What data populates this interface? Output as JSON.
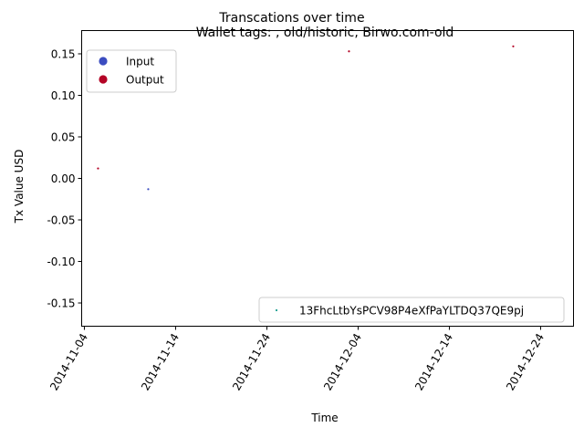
{
  "chart_data": {
    "type": "scatter",
    "suptitle": "Transcations over time",
    "title": "Wallet tags: , old/historic, Birwo.com-old",
    "xlabel": "Time",
    "ylabel": "Tx Value USD",
    "xlim": [
      "2014-11-04",
      "2014-12-26"
    ],
    "ylim": [
      -0.178,
      0.178
    ],
    "x_ticks": [
      "2014-11-04",
      "2014-11-14",
      "2014-11-24",
      "2014-12-04",
      "2014-12-14",
      "2014-12-24"
    ],
    "y_ticks": [
      0.15,
      0.1,
      0.05,
      0.0,
      -0.05,
      -0.1,
      -0.15
    ],
    "grid": false,
    "colors": {
      "input": "#3b4cc0",
      "output": "#b40426",
      "address": "#1a9e8f"
    },
    "legend_top_left": [
      {
        "label": "Input",
        "color": "#3b4cc0"
      },
      {
        "label": "Output",
        "color": "#b40426"
      }
    ],
    "legend_bottom_right": [
      {
        "label": "13FhcLtbYsPCV98P4eXfPaYLTDQ37QE9pj",
        "color": "#1a9e8f"
      }
    ],
    "points": [
      {
        "x": "2014-11-05 12:00",
        "y": 0.012,
        "color": "#b40426",
        "kind": "Output"
      },
      {
        "x": "2014-11-11 00:00",
        "y": -0.013,
        "color": "#3b4cc0",
        "kind": "Input"
      },
      {
        "x": "2014-12-03 00:00",
        "y": 0.153,
        "color": "#b40426",
        "kind": "Output"
      },
      {
        "x": "2014-12-21 00:00",
        "y": 0.159,
        "color": "#b40426",
        "kind": "Output"
      }
    ]
  }
}
